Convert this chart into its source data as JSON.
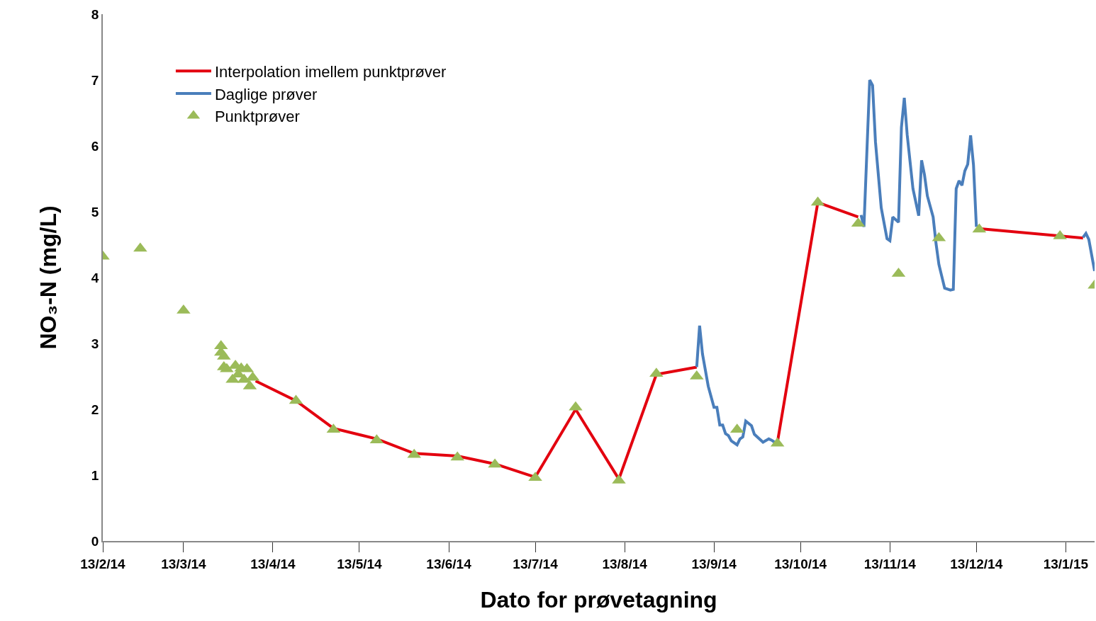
{
  "chart_data": {
    "type": "line",
    "xlabel": "Dato for prøvetagning",
    "ylabel": "NO₃-N (mg/L)",
    "xlim": [
      "2014-02-13",
      "2015-01-23"
    ],
    "ylim": [
      0,
      8
    ],
    "yticks": [
      0,
      1,
      2,
      3,
      4,
      5,
      6,
      7,
      8
    ],
    "xticks": [
      {
        "value": "2014-02-13",
        "label": "13/2/14"
      },
      {
        "value": "2014-03-13",
        "label": "13/3/14"
      },
      {
        "value": "2014-04-13",
        "label": "13/4/14"
      },
      {
        "value": "2014-05-13",
        "label": "13/5/14"
      },
      {
        "value": "2014-06-13",
        "label": "13/6/14"
      },
      {
        "value": "2014-07-13",
        "label": "13/7/14"
      },
      {
        "value": "2014-08-13",
        "label": "13/8/14"
      },
      {
        "value": "2014-09-13",
        "label": "13/9/14"
      },
      {
        "value": "2014-10-13",
        "label": "13/10/14"
      },
      {
        "value": "2014-11-13",
        "label": "13/11/14"
      },
      {
        "value": "2014-12-13",
        "label": "13/12/14"
      },
      {
        "value": "2015-01-13",
        "label": "13/1/15"
      }
    ],
    "grid": false,
    "legend": "top left",
    "series": [
      {
        "name": "Interpolation imellem punktprøver",
        "color": "#e3000f",
        "x": [
          "2014-04-07",
          "2014-04-21",
          "2014-05-04",
          "2014-05-19",
          "2014-06-01",
          "2014-06-16",
          "2014-06-29",
          "2014-07-13",
          "2014-07-27",
          "2014-08-11",
          "2014-08-24",
          "2014-09-07",
          "2014-09-20",
          "2014-10-05",
          "2014-10-19",
          "2014-11-02",
          "2014-11-20",
          "2014-12-15",
          "2015-01-19"
        ],
        "values": [
          2.43,
          2.13,
          1.71,
          1.55,
          1.33,
          1.29,
          1.17,
          0.97,
          2.0,
          0.94,
          2.53,
          2.64,
          null,
          1.5,
          5.14,
          4.92,
          null,
          4.74,
          4.6
        ]
      },
      {
        "name": "Daglige prøver",
        "color": "#4a7ebb",
        "x": [
          "2014-09-07",
          "2014-09-08",
          "2014-09-09",
          "2014-09-11",
          "2014-09-13",
          "2014-09-14",
          "2014-09-15",
          "2014-09-16",
          "2014-09-17",
          "2014-09-18",
          "2014-09-19",
          "2014-09-21",
          "2014-09-22",
          "2014-09-23",
          "2014-09-24",
          "2014-09-26",
          "2014-09-27",
          "2014-09-30",
          "2014-10-02",
          "2014-10-03",
          "2014-10-04",
          "2014-10-20",
          "2014-11-03",
          "2014-11-04",
          "2014-11-06",
          "2014-11-07",
          "2014-11-08",
          "2014-11-10",
          "2014-11-12",
          "2014-11-13",
          "2014-11-14",
          "2014-11-16",
          "2014-11-17",
          "2014-11-18",
          "2014-11-19",
          "2014-11-21",
          "2014-11-23",
          "2014-11-24",
          "2014-11-25",
          "2014-11-26",
          "2014-11-28",
          "2014-11-29",
          "2014-11-30",
          "2014-12-02",
          "2014-12-04",
          "2014-12-05",
          "2014-12-06",
          "2014-12-07",
          "2014-12-08",
          "2014-12-09",
          "2014-12-10",
          "2014-12-11",
          "2014-12-12",
          "2014-12-13",
          "2014-12-30",
          "2015-01-19",
          "2015-01-20",
          "2015-01-21",
          "2015-01-23"
        ],
        "values": [
          2.64,
          3.27,
          2.84,
          2.35,
          2.03,
          2.03,
          1.76,
          1.76,
          1.63,
          1.6,
          1.52,
          1.46,
          1.55,
          1.58,
          1.82,
          1.75,
          1.62,
          1.5,
          1.55,
          1.53,
          1.5,
          null,
          4.95,
          4.77,
          7.0,
          6.92,
          6.06,
          5.06,
          4.59,
          4.56,
          4.92,
          4.84,
          6.28,
          6.73,
          6.17,
          5.35,
          4.94,
          5.78,
          5.56,
          5.24,
          4.92,
          4.52,
          4.2,
          3.84,
          3.81,
          3.82,
          5.35,
          5.47,
          5.4,
          5.62,
          5.72,
          6.16,
          5.71,
          4.77,
          null,
          4.61,
          4.67,
          4.58,
          4.1
        ]
      },
      {
        "name": "Punktprøver",
        "type": "scatter",
        "marker": "triangle",
        "color": "#9bbb59",
        "x": [
          "2014-02-13",
          "2014-02-26",
          "2014-03-13",
          "2014-03-26",
          "2014-03-26",
          "2014-03-27",
          "2014-03-27",
          "2014-03-28",
          "2014-03-30",
          "2014-03-31",
          "2014-04-01",
          "2014-04-02",
          "2014-04-03",
          "2014-04-04",
          "2014-04-05",
          "2014-04-06",
          "2014-04-21",
          "2014-05-04",
          "2014-05-19",
          "2014-06-01",
          "2014-06-16",
          "2014-06-29",
          "2014-07-13",
          "2014-07-27",
          "2014-08-11",
          "2014-08-24",
          "2014-09-07",
          "2014-09-21",
          "2014-10-05",
          "2014-10-19",
          "2014-11-02",
          "2014-11-16",
          "2014-11-30",
          "2014-12-14",
          "2015-01-11",
          "2015-01-23"
        ],
        "values": [
          4.32,
          4.44,
          3.5,
          2.96,
          2.86,
          2.8,
          2.64,
          2.61,
          2.45,
          2.66,
          2.53,
          2.62,
          2.45,
          2.61,
          2.35,
          2.48,
          2.13,
          1.69,
          1.53,
          1.31,
          1.27,
          1.16,
          0.96,
          2.03,
          0.92,
          2.54,
          2.5,
          1.69,
          1.48,
          5.14,
          4.82,
          4.06,
          4.6,
          4.73,
          4.63,
          3.88
        ]
      }
    ]
  }
}
